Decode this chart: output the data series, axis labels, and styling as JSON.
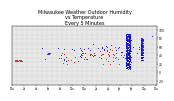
{
  "title": "Milwaukee Weather Outdoor Humidity\nvs Temperature\nEvery 5 Minutes",
  "title_fontsize": 3.5,
  "background_color": "#ffffff",
  "plot_bg_color": "#e8e8e8",
  "grid_color": "#aaaaaa",
  "ylim": [
    -30,
    110
  ],
  "xlim": [
    0,
    290
  ],
  "yticks": [
    -20,
    0,
    20,
    40,
    60,
    80,
    100
  ],
  "ytick_labels": [
    "-20",
    "0",
    "20",
    "40",
    "60",
    "80",
    "100"
  ],
  "humidity_color": "#0000dd",
  "temp_color": "#dd0000",
  "num_x_gridlines": 30,
  "num_y_gridlines": 14
}
